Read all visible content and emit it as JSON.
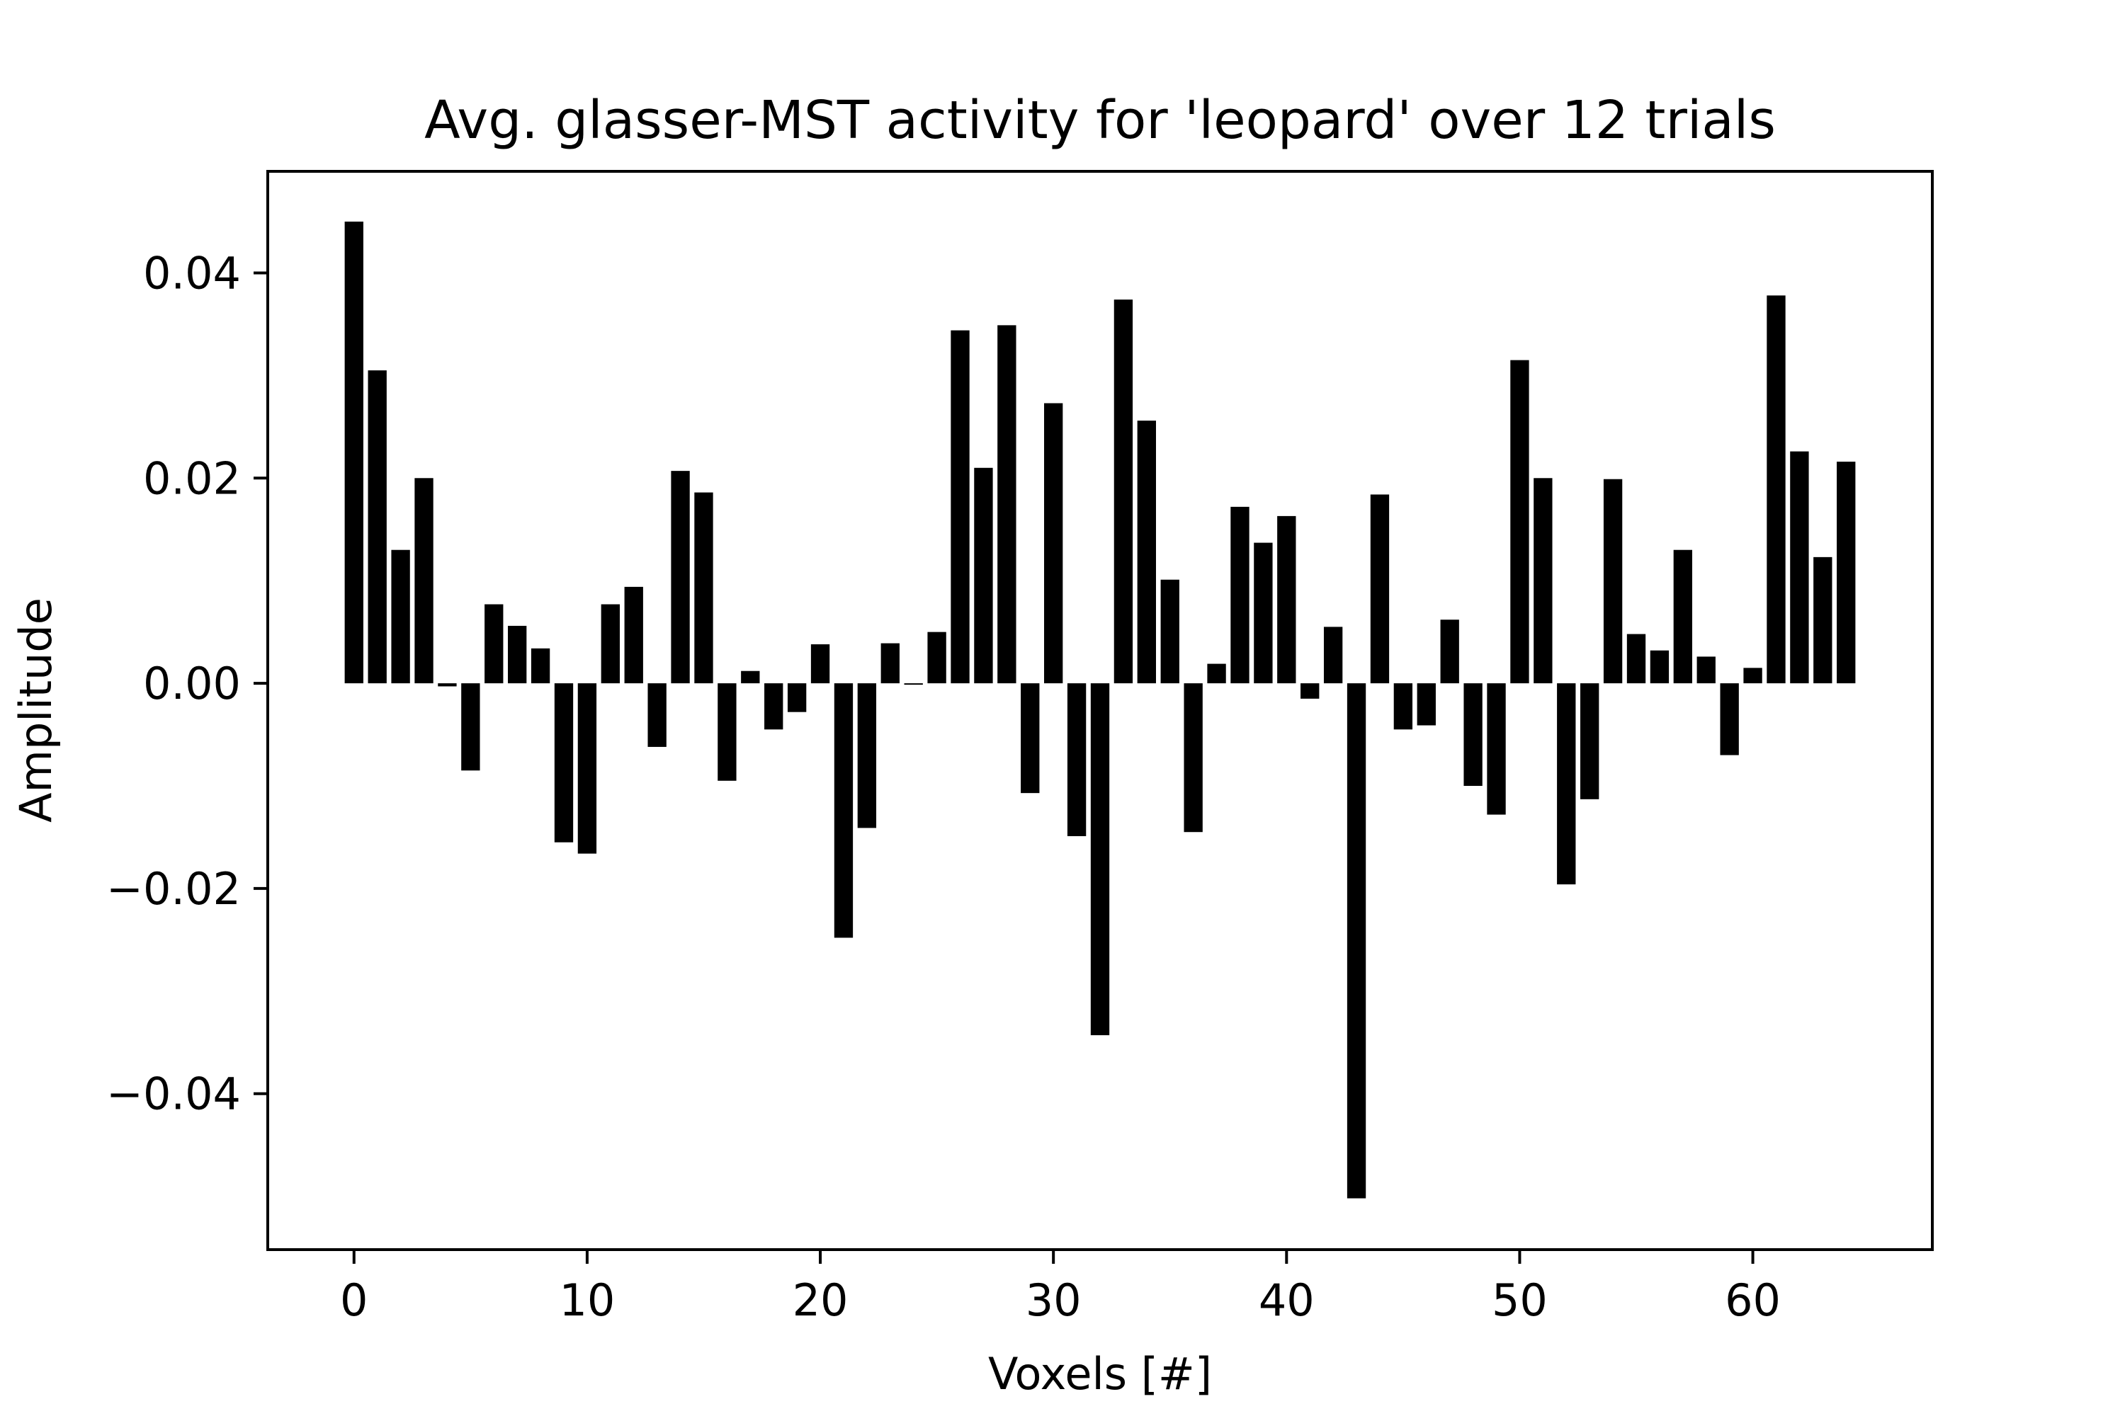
{
  "chart_data": {
    "type": "bar",
    "title": "Avg. glasser-MST activity for 'leopard' over 12 trials",
    "xlabel": "Voxels [#]",
    "ylabel": "Amplitude",
    "x": [
      0,
      1,
      2,
      3,
      4,
      5,
      6,
      7,
      8,
      9,
      10,
      11,
      12,
      13,
      14,
      15,
      16,
      17,
      18,
      19,
      20,
      21,
      22,
      23,
      24,
      25,
      26,
      27,
      28,
      29,
      30,
      31,
      32,
      33,
      34,
      35,
      36,
      37,
      38,
      39,
      40,
      41,
      42,
      43,
      44,
      45,
      46,
      47,
      48,
      49,
      50,
      51,
      52,
      53,
      54,
      55,
      56,
      57,
      58,
      59,
      60,
      61,
      62,
      63,
      64
    ],
    "values": [
      0.045,
      0.0305,
      0.013,
      0.02,
      -0.0003,
      -0.0085,
      0.0077,
      0.0056,
      0.0034,
      -0.0155,
      -0.0166,
      0.0077,
      0.0094,
      -0.0062,
      0.0207,
      0.0186,
      -0.0095,
      0.0012,
      -0.0045,
      -0.0028,
      0.0038,
      -0.0248,
      -0.0141,
      0.0039,
      -0.0001,
      0.005,
      0.0344,
      0.021,
      0.0349,
      -0.0107,
      0.0273,
      -0.0149,
      -0.0343,
      0.0374,
      0.0256,
      0.0101,
      -0.0145,
      0.0019,
      0.0172,
      0.0137,
      0.0163,
      -0.0015,
      0.0055,
      -0.0502,
      0.0184,
      -0.0045,
      -0.0041,
      0.0062,
      -0.01,
      -0.0128,
      0.0315,
      0.02,
      -0.0196,
      -0.0113,
      0.0199,
      0.0048,
      0.0032,
      0.013,
      0.0026,
      -0.007,
      0.0015,
      0.0378,
      0.0226,
      0.0123,
      0.0216
    ],
    "xlim": [
      -3.7,
      67.7
    ],
    "ylim": [
      -0.0552,
      0.0499
    ],
    "xticks": [
      0,
      10,
      20,
      30,
      40,
      50,
      60
    ],
    "xtick_labels": [
      "0",
      "10",
      "20",
      "30",
      "40",
      "50",
      "60"
    ],
    "yticks": [
      -0.04,
      -0.02,
      0.0,
      0.02,
      0.04
    ],
    "ytick_labels": [
      "−0.04",
      "−0.02",
      "0.00",
      "0.02",
      "0.04"
    ],
    "bar_color": "#000000",
    "grid": false,
    "legend": "none"
  }
}
